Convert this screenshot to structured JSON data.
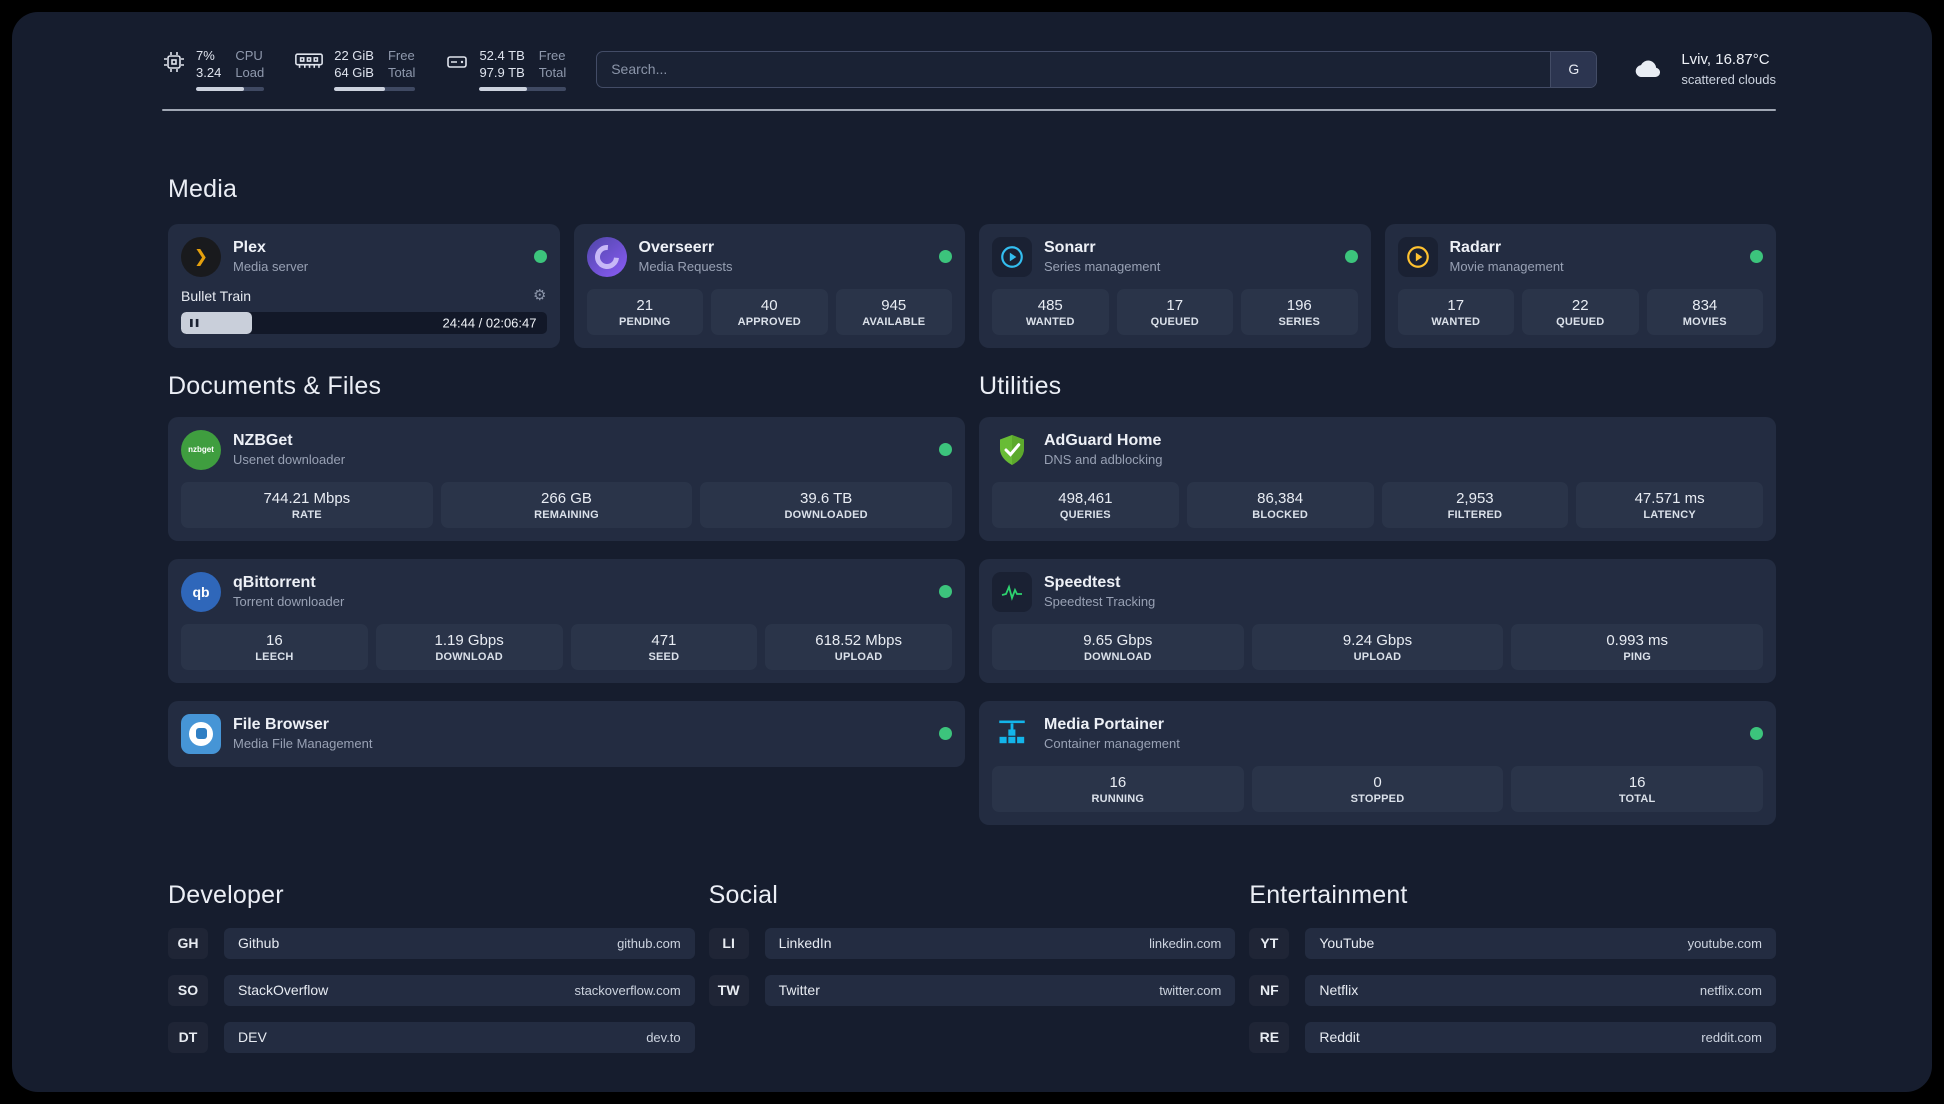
{
  "colors": {
    "status_online": "#3cc47c"
  },
  "topbar": {
    "cpu": {
      "percent": "7%",
      "load": "3.24",
      "label_top": "CPU",
      "label_bottom": "Load"
    },
    "memory": {
      "free": "22 GiB",
      "total": "64 GiB",
      "label_top": "Free",
      "label_bottom": "Total"
    },
    "disk": {
      "free": "52.4 TB",
      "total": "97.9 TB",
      "label_top": "Free",
      "label_bottom": "Total"
    },
    "search": {
      "placeholder": "Search...",
      "button_label": "G"
    },
    "weather": {
      "location": "Lviv, 16.87°C",
      "condition": "scattered clouds"
    }
  },
  "media": {
    "heading": "Media",
    "plex": {
      "name": "Plex",
      "description": "Media server",
      "now_playing": "Bullet Train",
      "time": "24:44 / 02:06:47",
      "progress_percent": 19.5
    },
    "overseerr": {
      "name": "Overseerr",
      "description": "Media Requests",
      "stats": [
        {
          "value": "21",
          "label": "PENDING"
        },
        {
          "value": "40",
          "label": "APPROVED"
        },
        {
          "value": "945",
          "label": "AVAILABLE"
        }
      ]
    },
    "sonarr": {
      "name": "Sonarr",
      "description": "Series management",
      "stats": [
        {
          "value": "485",
          "label": "WANTED"
        },
        {
          "value": "17",
          "label": "QUEUED"
        },
        {
          "value": "196",
          "label": "SERIES"
        }
      ]
    },
    "radarr": {
      "name": "Radarr",
      "description": "Movie management",
      "stats": [
        {
          "value": "17",
          "label": "WANTED"
        },
        {
          "value": "22",
          "label": "QUEUED"
        },
        {
          "value": "834",
          "label": "MOVIES"
        }
      ]
    }
  },
  "documents": {
    "heading": "Documents & Files",
    "nzbget": {
      "name": "NZBGet",
      "description": "Usenet downloader",
      "icon_text": "nzbget",
      "stats": [
        {
          "value": "744.21 Mbps",
          "label": "RATE"
        },
        {
          "value": "266 GB",
          "label": "REMAINING"
        },
        {
          "value": "39.6 TB",
          "label": "DOWNLOADED"
        }
      ]
    },
    "qbittorrent": {
      "name": "qBittorrent",
      "description": "Torrent downloader",
      "icon_text": "qb",
      "stats": [
        {
          "value": "16",
          "label": "LEECH"
        },
        {
          "value": "1.19 Gbps",
          "label": "DOWNLOAD"
        },
        {
          "value": "471",
          "label": "SEED"
        },
        {
          "value": "618.52 Mbps",
          "label": "UPLOAD"
        }
      ]
    },
    "filebrowser": {
      "name": "File Browser",
      "description": "Media File Management"
    }
  },
  "utilities": {
    "heading": "Utilities",
    "adguard": {
      "name": "AdGuard Home",
      "description": "DNS and adblocking",
      "stats": [
        {
          "value": "498,461",
          "label": "QUERIES"
        },
        {
          "value": "86,384",
          "label": "BLOCKED"
        },
        {
          "value": "2,953",
          "label": "FILTERED"
        },
        {
          "value": "47.571 ms",
          "label": "LATENCY"
        }
      ]
    },
    "speedtest": {
      "name": "Speedtest",
      "description": "Speedtest Tracking",
      "stats": [
        {
          "value": "9.65 Gbps",
          "label": "DOWNLOAD"
        },
        {
          "value": "9.24 Gbps",
          "label": "UPLOAD"
        },
        {
          "value": "0.993 ms",
          "label": "PING"
        }
      ]
    },
    "portainer": {
      "name": "Media Portainer",
      "description": "Container management",
      "stats": [
        {
          "value": "16",
          "label": "RUNNING"
        },
        {
          "value": "0",
          "label": "STOPPED"
        },
        {
          "value": "16",
          "label": "TOTAL"
        }
      ]
    }
  },
  "bookmarks": {
    "developer": {
      "heading": "Developer",
      "items": [
        {
          "abbr": "GH",
          "name": "Github",
          "url": "github.com"
        },
        {
          "abbr": "SO",
          "name": "StackOverflow",
          "url": "stackoverflow.com"
        },
        {
          "abbr": "DT",
          "name": "DEV",
          "url": "dev.to"
        }
      ]
    },
    "social": {
      "heading": "Social",
      "items": [
        {
          "abbr": "LI",
          "name": "LinkedIn",
          "url": "linkedin.com"
        },
        {
          "abbr": "TW",
          "name": "Twitter",
          "url": "twitter.com"
        }
      ]
    },
    "entertainment": {
      "heading": "Entertainment",
      "items": [
        {
          "abbr": "YT",
          "name": "YouTube",
          "url": "youtube.com"
        },
        {
          "abbr": "NF",
          "name": "Netflix",
          "url": "netflix.com"
        },
        {
          "abbr": "RE",
          "name": "Reddit",
          "url": "reddit.com"
        }
      ]
    }
  }
}
